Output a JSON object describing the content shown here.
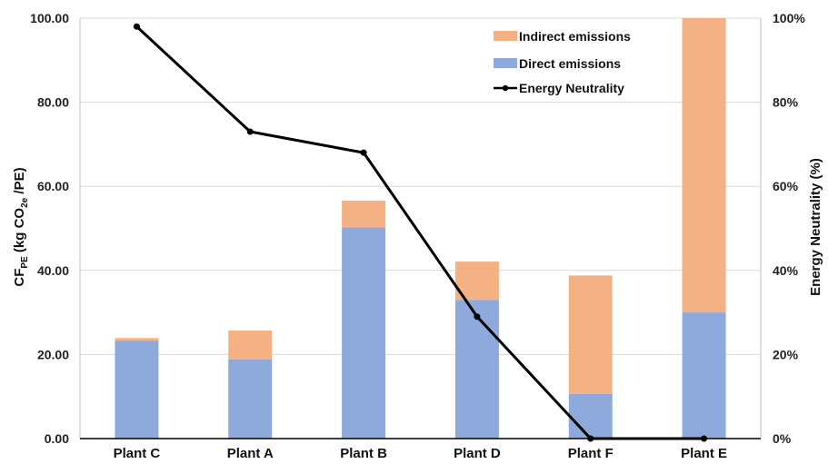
{
  "chart_data": {
    "type": "bar",
    "stacked": true,
    "categories": [
      "Plant C",
      "Plant A",
      "Plant B",
      "Plant D",
      "Plant F",
      "Plant E"
    ],
    "series": [
      {
        "name": "Direct emissions",
        "axis": "left",
        "color": "#8eaadc",
        "values": [
          23.3,
          18.8,
          50.2,
          33.0,
          10.6,
          30.0
        ]
      },
      {
        "name": "Indirect emissions",
        "axis": "left",
        "color": "#f4b183",
        "values": [
          0.6,
          6.9,
          6.4,
          9.1,
          28.2,
          70.0
        ]
      },
      {
        "name": "Energy Neutrality",
        "type": "line",
        "axis": "right",
        "color": "#000000",
        "values": [
          98,
          73,
          68,
          29,
          0,
          0
        ]
      }
    ],
    "y_left": {
      "label_parts": {
        "a": "CF",
        "sub1": "PE",
        "b": " (kg CO",
        "sub2": "2e",
        "c": " /PE)"
      },
      "ylim": [
        0,
        100
      ],
      "ticks": [
        "0.00",
        "20.00",
        "40.00",
        "60.00",
        "80.00",
        "100.00"
      ]
    },
    "y_right": {
      "label": "Energy Neutrality (%)",
      "ylim": [
        0,
        100
      ],
      "ticks": [
        "0%",
        "20%",
        "40%",
        "60%",
        "80%",
        "100%"
      ]
    },
    "legend": {
      "position": "top-right",
      "items": [
        "Indirect emissions",
        "Direct emissions",
        "Energy Neutrality"
      ]
    },
    "grid": true
  }
}
